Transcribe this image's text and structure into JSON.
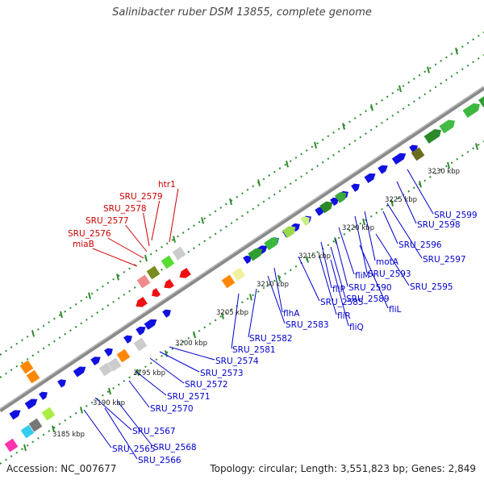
{
  "title": "Salinibacter ruber DSM 13855, complete genome",
  "accession": "Accession: NC_007677",
  "topology": "Topology: circular; Length: 3,551,823 bp; Genes: 2,849",
  "colors": {
    "forward_label": "#0000cc",
    "reverse_label": "#cc0000",
    "backbone": "#808080",
    "tick": "#2e8b2e"
  },
  "scale_labels": [
    {
      "text": "3185 kbp",
      "pos": 3185
    },
    {
      "text": "3190 kbp",
      "pos": 3190
    },
    {
      "text": "3195 kbp",
      "pos": 3195
    },
    {
      "text": "3200 kbp",
      "pos": 3200
    },
    {
      "text": "3205 kbp",
      "pos": 3205
    },
    {
      "text": "3210 kbp",
      "pos": 3210
    },
    {
      "text": "3215 kbp",
      "pos": 3215
    },
    {
      "text": "3220 kbp",
      "pos": 3220
    },
    {
      "text": "3225 kbp",
      "pos": 3225
    },
    {
      "text": "3230 kbp",
      "pos": 3230
    }
  ],
  "reverse_gene_labels": [
    "htr1",
    "SRU_2579",
    "SRU_2578",
    "SRU_2577",
    "SRU_2576",
    "miaB"
  ],
  "forward_gene_labels": [
    "SRU_2599",
    "SRU_2598",
    "SRU_2596",
    "SRU_2597",
    "motA",
    "SRU_2593",
    "fliM",
    "SRU_2595",
    "fliP",
    "SRU_2590",
    "SRU_2589",
    "SRU_2585",
    "fliL",
    "flhA",
    "fliR",
    "fliQ",
    "SRU_2583",
    "SRU_2582",
    "SRU_2581",
    "SRU_2574",
    "SRU_2573",
    "SRU_2572",
    "SRU_2571",
    "SRU_2570",
    "SRU_2567",
    "SRU_2568",
    "SRU_2565",
    "SRU_2566"
  ]
}
